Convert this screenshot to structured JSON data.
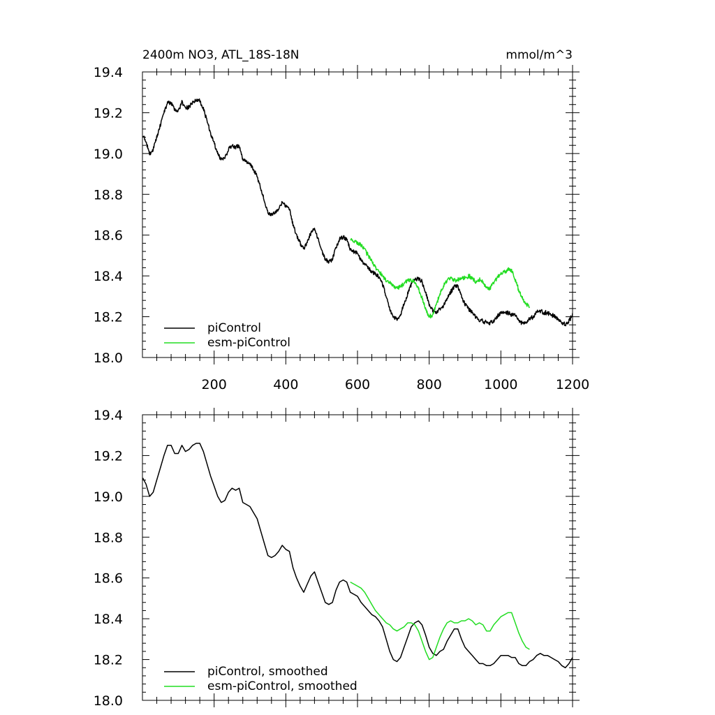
{
  "figure": {
    "title_left": "2400m NO3, ATL_18S-18N",
    "title_right": "mmol/m^3"
  },
  "colors": {
    "piControl": "#000000",
    "esm_piControl": "#22dd22"
  },
  "chart_data": [
    {
      "type": "line",
      "title": "2400m NO3, ATL_18S-18N",
      "units": "mmol/m^3",
      "xlim": [
        0,
        1200
      ],
      "ylim": [
        18.0,
        19.4
      ],
      "x_ticks": [
        200,
        400,
        600,
        800,
        1000,
        1200
      ],
      "y_ticks": [
        18.0,
        18.2,
        18.4,
        18.6,
        18.8,
        19.0,
        19.2,
        19.4
      ],
      "show_x_labels": true,
      "legend_position": "bottom-left",
      "series": [
        {
          "name": "piControl",
          "noisy": true,
          "x": [
            1,
            10,
            20,
            30,
            40,
            50,
            60,
            70,
            80,
            90,
            100,
            110,
            120,
            130,
            140,
            150,
            160,
            170,
            180,
            190,
            200,
            210,
            220,
            230,
            240,
            250,
            260,
            270,
            280,
            290,
            300,
            310,
            320,
            330,
            340,
            350,
            360,
            370,
            380,
            390,
            400,
            410,
            420,
            430,
            440,
            450,
            460,
            470,
            480,
            490,
            500,
            510,
            520,
            530,
            540,
            550,
            560,
            570,
            580,
            590,
            600,
            610,
            620,
            630,
            640,
            650,
            660,
            670,
            680,
            690,
            700,
            710,
            720,
            730,
            740,
            750,
            760,
            770,
            780,
            790,
            800,
            810,
            820,
            830,
            840,
            850,
            860,
            870,
            880,
            890,
            900,
            910,
            920,
            930,
            940,
            950,
            960,
            970,
            980,
            990,
            1000,
            1010,
            1020,
            1030,
            1040,
            1050,
            1060,
            1070,
            1080,
            1090,
            1100,
            1110,
            1120,
            1130,
            1140,
            1150,
            1160,
            1170,
            1180,
            1190,
            1200
          ],
          "y": [
            19.09,
            19.06,
            19.0,
            19.02,
            19.08,
            19.14,
            19.2,
            19.25,
            19.25,
            19.21,
            19.21,
            19.25,
            19.22,
            19.23,
            19.25,
            19.26,
            19.26,
            19.22,
            19.16,
            19.1,
            19.05,
            19.0,
            18.97,
            18.98,
            19.02,
            19.04,
            19.03,
            19.04,
            18.97,
            18.96,
            18.95,
            18.92,
            18.89,
            18.83,
            18.77,
            18.71,
            18.7,
            18.71,
            18.73,
            18.76,
            18.74,
            18.73,
            18.65,
            18.6,
            18.56,
            18.53,
            18.57,
            18.61,
            18.63,
            18.58,
            18.53,
            18.48,
            18.47,
            18.48,
            18.54,
            18.58,
            18.59,
            18.58,
            18.53,
            18.52,
            18.51,
            18.48,
            18.46,
            18.44,
            18.42,
            18.41,
            18.39,
            18.36,
            18.3,
            18.24,
            18.2,
            18.19,
            18.21,
            18.26,
            18.31,
            18.36,
            18.38,
            18.39,
            18.37,
            18.32,
            18.26,
            18.23,
            18.22,
            18.24,
            18.25,
            18.29,
            18.32,
            18.35,
            18.35,
            18.3,
            18.26,
            18.24,
            18.22,
            18.2,
            18.18,
            18.18,
            18.17,
            18.17,
            18.18,
            18.2,
            18.22,
            18.22,
            18.22,
            18.21,
            18.21,
            18.18,
            18.17,
            18.17,
            18.19,
            18.2,
            18.22,
            18.23,
            18.22,
            18.22,
            18.21,
            18.2,
            18.19,
            18.17,
            18.16,
            18.18,
            18.21
          ]
        },
        {
          "name": "esm-piControl",
          "noisy": true,
          "x": [
            580,
            590,
            600,
            610,
            620,
            630,
            640,
            650,
            660,
            670,
            680,
            690,
            700,
            710,
            720,
            730,
            740,
            750,
            760,
            770,
            780,
            790,
            800,
            810,
            820,
            830,
            840,
            850,
            860,
            870,
            880,
            890,
            900,
            910,
            920,
            930,
            940,
            950,
            960,
            970,
            980,
            990,
            1000,
            1010,
            1020,
            1030,
            1040,
            1050,
            1060,
            1070,
            1080
          ],
          "y": [
            18.58,
            18.57,
            18.56,
            18.55,
            18.53,
            18.5,
            18.47,
            18.44,
            18.42,
            18.4,
            18.38,
            18.37,
            18.35,
            18.34,
            18.35,
            18.36,
            18.38,
            18.38,
            18.37,
            18.34,
            18.29,
            18.24,
            18.2,
            18.21,
            18.26,
            18.31,
            18.35,
            18.38,
            18.39,
            18.38,
            18.38,
            18.39,
            18.39,
            18.4,
            18.39,
            18.37,
            18.38,
            18.37,
            18.34,
            18.34,
            18.37,
            18.39,
            18.41,
            18.42,
            18.43,
            18.43,
            18.38,
            18.33,
            18.29,
            18.26,
            18.25
          ]
        }
      ]
    },
    {
      "type": "line",
      "title": "",
      "units": "",
      "xlim": [
        0,
        1200
      ],
      "ylim": [
        18.0,
        19.4
      ],
      "x_ticks": [
        200,
        400,
        600,
        800,
        1000,
        1200
      ],
      "y_ticks": [
        18.0,
        18.2,
        18.4,
        18.6,
        18.8,
        19.0,
        19.2,
        19.4
      ],
      "show_x_labels": false,
      "legend_position": "bottom-left",
      "series": [
        {
          "name": "piControl, smoothed",
          "noisy": false,
          "x": [
            1,
            10,
            20,
            30,
            40,
            50,
            60,
            70,
            80,
            90,
            100,
            110,
            120,
            130,
            140,
            150,
            160,
            170,
            180,
            190,
            200,
            210,
            220,
            230,
            240,
            250,
            260,
            270,
            280,
            290,
            300,
            310,
            320,
            330,
            340,
            350,
            360,
            370,
            380,
            390,
            400,
            410,
            420,
            430,
            440,
            450,
            460,
            470,
            480,
            490,
            500,
            510,
            520,
            530,
            540,
            550,
            560,
            570,
            580,
            590,
            600,
            610,
            620,
            630,
            640,
            650,
            660,
            670,
            680,
            690,
            700,
            710,
            720,
            730,
            740,
            750,
            760,
            770,
            780,
            790,
            800,
            810,
            820,
            830,
            840,
            850,
            860,
            870,
            880,
            890,
            900,
            910,
            920,
            930,
            940,
            950,
            960,
            970,
            980,
            990,
            1000,
            1010,
            1020,
            1030,
            1040,
            1050,
            1060,
            1070,
            1080,
            1090,
            1100,
            1110,
            1120,
            1130,
            1140,
            1150,
            1160,
            1170,
            1180,
            1190,
            1200
          ],
          "y": [
            19.09,
            19.06,
            19.0,
            19.02,
            19.08,
            19.14,
            19.2,
            19.25,
            19.25,
            19.21,
            19.21,
            19.25,
            19.22,
            19.23,
            19.25,
            19.26,
            19.26,
            19.22,
            19.16,
            19.1,
            19.05,
            19.0,
            18.97,
            18.98,
            19.02,
            19.04,
            19.03,
            19.04,
            18.97,
            18.96,
            18.95,
            18.92,
            18.89,
            18.83,
            18.77,
            18.71,
            18.7,
            18.71,
            18.73,
            18.76,
            18.74,
            18.73,
            18.65,
            18.6,
            18.56,
            18.53,
            18.57,
            18.61,
            18.63,
            18.58,
            18.53,
            18.48,
            18.47,
            18.48,
            18.54,
            18.58,
            18.59,
            18.58,
            18.53,
            18.52,
            18.51,
            18.48,
            18.46,
            18.44,
            18.42,
            18.41,
            18.39,
            18.36,
            18.3,
            18.24,
            18.2,
            18.19,
            18.21,
            18.26,
            18.31,
            18.36,
            18.38,
            18.39,
            18.37,
            18.32,
            18.26,
            18.23,
            18.22,
            18.24,
            18.25,
            18.29,
            18.32,
            18.35,
            18.35,
            18.3,
            18.26,
            18.24,
            18.22,
            18.2,
            18.18,
            18.18,
            18.17,
            18.17,
            18.18,
            18.2,
            18.22,
            18.22,
            18.22,
            18.21,
            18.21,
            18.18,
            18.17,
            18.17,
            18.19,
            18.2,
            18.22,
            18.23,
            18.22,
            18.22,
            18.21,
            18.2,
            18.19,
            18.17,
            18.16,
            18.18,
            18.21
          ]
        },
        {
          "name": "esm-piControl, smoothed",
          "noisy": false,
          "x": [
            580,
            590,
            600,
            610,
            620,
            630,
            640,
            650,
            660,
            670,
            680,
            690,
            700,
            710,
            720,
            730,
            740,
            750,
            760,
            770,
            780,
            790,
            800,
            810,
            820,
            830,
            840,
            850,
            860,
            870,
            880,
            890,
            900,
            910,
            920,
            930,
            940,
            950,
            960,
            970,
            980,
            990,
            1000,
            1010,
            1020,
            1030,
            1040,
            1050,
            1060,
            1070,
            1080
          ],
          "y": [
            18.58,
            18.57,
            18.56,
            18.55,
            18.53,
            18.5,
            18.47,
            18.44,
            18.42,
            18.4,
            18.38,
            18.37,
            18.35,
            18.34,
            18.35,
            18.36,
            18.38,
            18.38,
            18.37,
            18.34,
            18.29,
            18.24,
            18.2,
            18.21,
            18.26,
            18.31,
            18.35,
            18.38,
            18.39,
            18.38,
            18.38,
            18.39,
            18.39,
            18.4,
            18.39,
            18.37,
            18.38,
            18.37,
            18.34,
            18.34,
            18.37,
            18.39,
            18.41,
            18.42,
            18.43,
            18.43,
            18.38,
            18.33,
            18.29,
            18.26,
            18.25
          ]
        }
      ]
    }
  ]
}
